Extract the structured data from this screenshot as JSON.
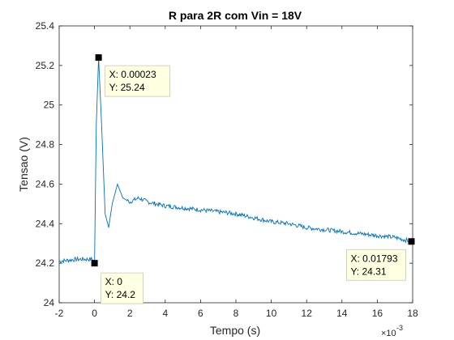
{
  "chart_data": {
    "type": "line",
    "title": "R para 2R com Vin = 18V",
    "xlabel": "Tempo (s)",
    "ylabel": "Tensao (V)",
    "x_multiplier_label": "×10",
    "x_multiplier_exponent": "-3",
    "xlim": [
      -0.002,
      0.018
    ],
    "ylim": [
      24.0,
      25.4
    ],
    "x_ticks": [
      -0.002,
      0,
      0.002,
      0.004,
      0.006,
      0.008,
      0.01,
      0.012,
      0.014,
      0.016,
      0.018
    ],
    "x_tick_labels": [
      "-2",
      "0",
      "2",
      "4",
      "6",
      "8",
      "10",
      "12",
      "14",
      "16",
      "18"
    ],
    "y_ticks": [
      24.0,
      24.2,
      24.4,
      24.6,
      24.8,
      25.0,
      25.2,
      25.4
    ],
    "y_tick_labels": [
      "24",
      "24.2",
      "24.4",
      "24.6",
      "24.8",
      "25",
      "25.2",
      "25.4"
    ],
    "grid": false,
    "line_color": "#0072BD",
    "series": [
      {
        "x": [
          -0.002,
          -0.001,
          -0.0001,
          0,
          0.0001,
          0.00023,
          0.0004,
          0.0006,
          0.0008,
          0.001,
          0.0013,
          0.0016,
          0.002,
          0.0025,
          0.003,
          0.004,
          0.005,
          0.006,
          0.007,
          0.008,
          0.009,
          0.01,
          0.011,
          0.012,
          0.013,
          0.014,
          0.015,
          0.016,
          0.017,
          0.01793
        ],
        "y": [
          24.21,
          24.22,
          24.22,
          24.2,
          24.9,
          25.24,
          24.9,
          24.45,
          24.38,
          24.5,
          24.6,
          24.53,
          24.51,
          24.53,
          24.51,
          24.49,
          24.48,
          24.47,
          24.46,
          24.45,
          24.43,
          24.41,
          24.4,
          24.38,
          24.37,
          24.36,
          24.35,
          24.34,
          24.33,
          24.31
        ]
      }
    ],
    "data_tips": [
      {
        "x": 0.00023,
        "y": 25.24,
        "x_text": "X: 0.00023",
        "y_text": "Y: 25.24"
      },
      {
        "x": 0,
        "y": 24.2,
        "x_text": "X: 0",
        "y_text": "Y: 24.2"
      },
      {
        "x": 0.01793,
        "y": 24.31,
        "x_text": "X: 0.01793",
        "y_text": "Y: 24.31"
      }
    ]
  }
}
